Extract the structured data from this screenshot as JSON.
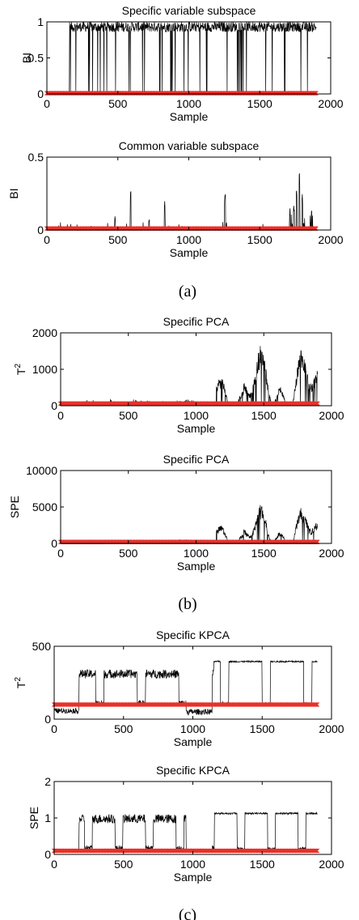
{
  "chart_data": [
    {
      "type": "line",
      "title": "Specific variable subspace",
      "xlabel": "Sample",
      "ylabel": "BI",
      "xlim": [
        0,
        2000
      ],
      "ylim": [
        0,
        1
      ],
      "yticks": [
        0,
        0.5,
        1
      ],
      "ytick_labels": [
        "0",
        "0.5",
        "1"
      ],
      "xticks": [
        0,
        500,
        1000,
        1500,
        2000
      ],
      "profile": "bi_specific",
      "limit": 0.01,
      "series_color": "#000000",
      "limit_color": "#e8312a"
    },
    {
      "type": "line",
      "title": "Common variable subspace",
      "xlabel": "Sample",
      "ylabel": "BI",
      "xlim": [
        0,
        2000
      ],
      "ylim": [
        0,
        0.5
      ],
      "yticks": [
        0,
        0.5
      ],
      "ytick_labels": [
        "0",
        "0.5"
      ],
      "xticks": [
        0,
        500,
        1000,
        1500,
        2000
      ],
      "profile": "bi_common",
      "limit": 0.01,
      "series_color": "#000000",
      "limit_color": "#e8312a"
    },
    {
      "type": "line",
      "title": "Specific PCA",
      "xlabel": "Sample",
      "ylabel": "T2",
      "ylabel_sup": true,
      "xlim": [
        0,
        2000
      ],
      "ylim": [
        0,
        2000
      ],
      "yticks": [
        0,
        1000,
        2000
      ],
      "ytick_labels": [
        "0",
        "1000",
        "2000"
      ],
      "xticks": [
        0,
        500,
        1000,
        1500,
        2000
      ],
      "profile": "pca_t2",
      "limit": 60,
      "series_color": "#000000",
      "limit_color": "#e8312a"
    },
    {
      "type": "line",
      "title": "Specific PCA",
      "xlabel": "Sample",
      "ylabel": "SPE",
      "xlim": [
        0,
        2000
      ],
      "ylim": [
        0,
        10000
      ],
      "yticks": [
        0,
        5000,
        10000
      ],
      "ytick_labels": [
        "0",
        "5000",
        "10000"
      ],
      "xticks": [
        0,
        500,
        1000,
        1500,
        2000
      ],
      "profile": "pca_spe",
      "limit": 200,
      "series_color": "#000000",
      "limit_color": "#e8312a"
    },
    {
      "type": "line",
      "title": "Specific KPCA",
      "xlabel": "Sample",
      "ylabel": "T2",
      "ylabel_sup": true,
      "xlim": [
        0,
        2000
      ],
      "ylim": [
        0,
        500
      ],
      "yticks": [
        0,
        500
      ],
      "ytick_labels": [
        "0",
        "500"
      ],
      "xticks": [
        0,
        500,
        1000,
        1500,
        2000
      ],
      "profile": "kpca_t2",
      "limit": 100,
      "series_color": "#000000",
      "limit_color": "#e8312a"
    },
    {
      "type": "line",
      "title": "Specific KPCA",
      "xlabel": "Sample",
      "ylabel": "SPE",
      "xlim": [
        0,
        2000
      ],
      "ylim": [
        0,
        2
      ],
      "yticks": [
        0,
        1,
        2
      ],
      "ytick_labels": [
        "0",
        "1",
        "2"
      ],
      "xticks": [
        0,
        500,
        1000,
        1500,
        2000
      ],
      "profile": "kpca_spe",
      "limit": 0.1,
      "series_color": "#000000",
      "limit_color": "#e8312a"
    }
  ],
  "panel_labels": [
    "(a)",
    "(b)",
    "(c)"
  ]
}
